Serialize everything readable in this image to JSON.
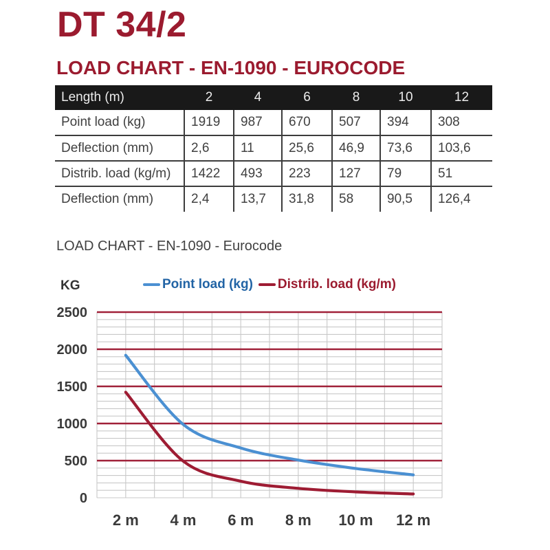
{
  "page": {
    "title": "DT 34/2",
    "section_heading": "LOAD CHART - EN-1090 - EUROCODE",
    "chart_caption": "LOAD CHART - EN-1090 - Eurocode"
  },
  "colors": {
    "brand_red": "#9b1b2f",
    "grid_major_red": "#a02038",
    "grid_minor_gray": "#c8c8c8",
    "point_load_blue": "#4b90d2",
    "legend_blue_text": "#2264a5",
    "distrib_load_red": "#9e1c33",
    "table_header_bg": "#191919",
    "table_header_text": "#ececec",
    "body_text": "#404040",
    "axis_text": "#3a3a3a"
  },
  "table": {
    "header": [
      "Length (m)",
      "2",
      "4",
      "6",
      "8",
      "10",
      "12"
    ],
    "rows": [
      {
        "label": "Point load (kg)",
        "values": [
          "1919",
          "987",
          "670",
          "507",
          "394",
          "308"
        ]
      },
      {
        "label": "Deflection (mm)",
        "values": [
          "2,6",
          "11",
          "25,6",
          "46,9",
          "73,6",
          "103,6"
        ]
      },
      {
        "label": "Distrib. load (kg/m)",
        "values": [
          "1422",
          "493",
          "223",
          "127",
          "79",
          "51"
        ]
      },
      {
        "label": "Deflection (mm)",
        "values": [
          "2,4",
          "13,7",
          "31,8",
          "58",
          "90,5",
          "126,4"
        ]
      }
    ]
  },
  "chart_data": {
    "type": "line",
    "title": "LOAD CHART - EN-1090 - Eurocode",
    "y_axis_label": "KG",
    "xlabel": "",
    "ylabel": "KG",
    "x": [
      2,
      4,
      6,
      8,
      10,
      12
    ],
    "x_tick_labels": [
      "2 m",
      "4 m",
      "6 m",
      "8 m",
      "10 m",
      "12 m"
    ],
    "series": [
      {
        "name": "Point load (kg)",
        "color": "#4b90d2",
        "legend_text_color": "#2264a5",
        "values": [
          1919,
          987,
          670,
          507,
          394,
          308
        ]
      },
      {
        "name": "Distrib. load (kg/m)",
        "color": "#9e1c33",
        "legend_text_color": "#9b1b2f",
        "values": [
          1422,
          493,
          223,
          127,
          79,
          51
        ]
      }
    ],
    "ylim": [
      0,
      2500
    ],
    "y_ticks": [
      0,
      500,
      1000,
      1500,
      2000,
      2500
    ],
    "x_range": [
      1,
      13
    ],
    "grid": {
      "on": true,
      "major_every": 500,
      "minor_every": 100,
      "vertical_every_m": 1
    },
    "legend_position": "top",
    "smooth": true
  }
}
